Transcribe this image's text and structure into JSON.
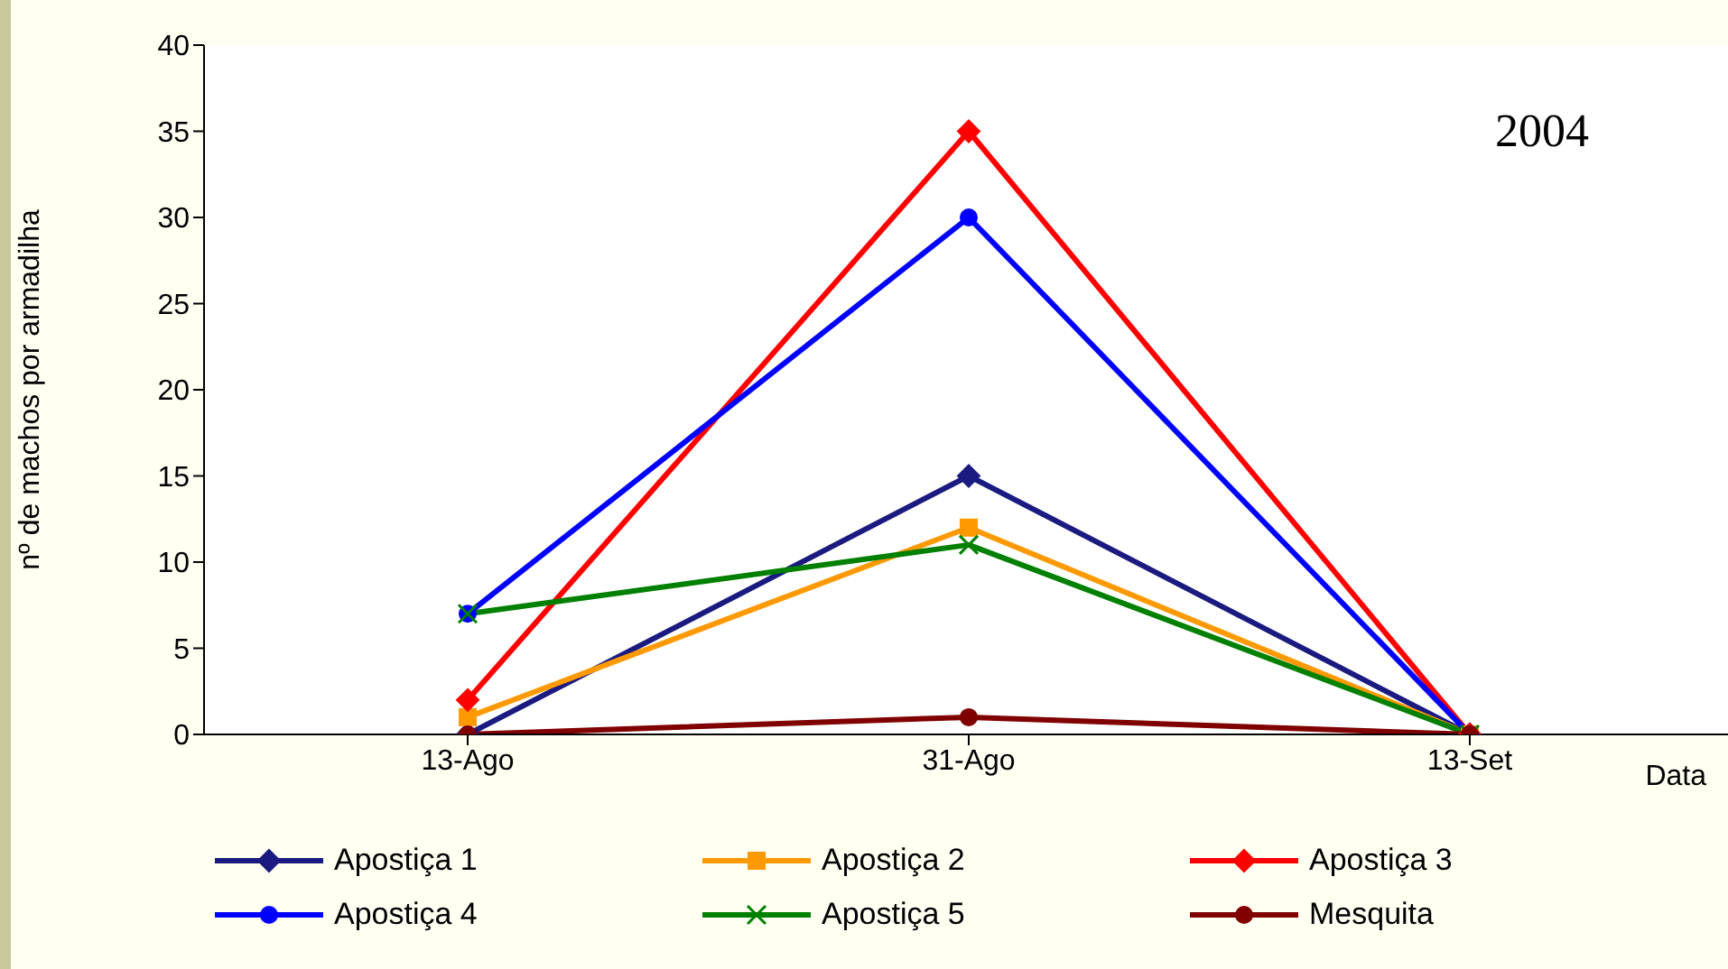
{
  "chart_data": {
    "type": "line",
    "xlabel": "Data",
    "ylabel": "nº de machos por armadilha",
    "annotations": [
      "2004"
    ],
    "categories": [
      "13-Ago",
      "31-Ago",
      "13-Set"
    ],
    "series": [
      {
        "name": "Apostiça 1",
        "color": "#1a1a80",
        "marker": "diamond",
        "values": [
          0,
          15,
          0
        ]
      },
      {
        "name": "Apostiça 2",
        "color": "#ff9900",
        "marker": "square",
        "values": [
          1,
          12,
          0
        ]
      },
      {
        "name": "Apostiça 3",
        "color": "#ff0000",
        "marker": "diamond",
        "values": [
          2,
          35,
          0
        ]
      },
      {
        "name": "Apostiça 4",
        "color": "#0000ff",
        "marker": "circle",
        "values": [
          7,
          30,
          0
        ]
      },
      {
        "name": "Apostiça 5",
        "color": "#008000",
        "marker": "cross",
        "values": [
          7,
          11,
          0
        ]
      },
      {
        "name": "Mesquita",
        "color": "#800000",
        "marker": "circle",
        "values": [
          0,
          1,
          0
        ]
      }
    ],
    "ylim": [
      0,
      40
    ],
    "yticks": [
      0,
      5,
      10,
      15,
      20,
      25,
      30,
      35,
      40
    ],
    "grid": false,
    "legend": "bottom"
  }
}
